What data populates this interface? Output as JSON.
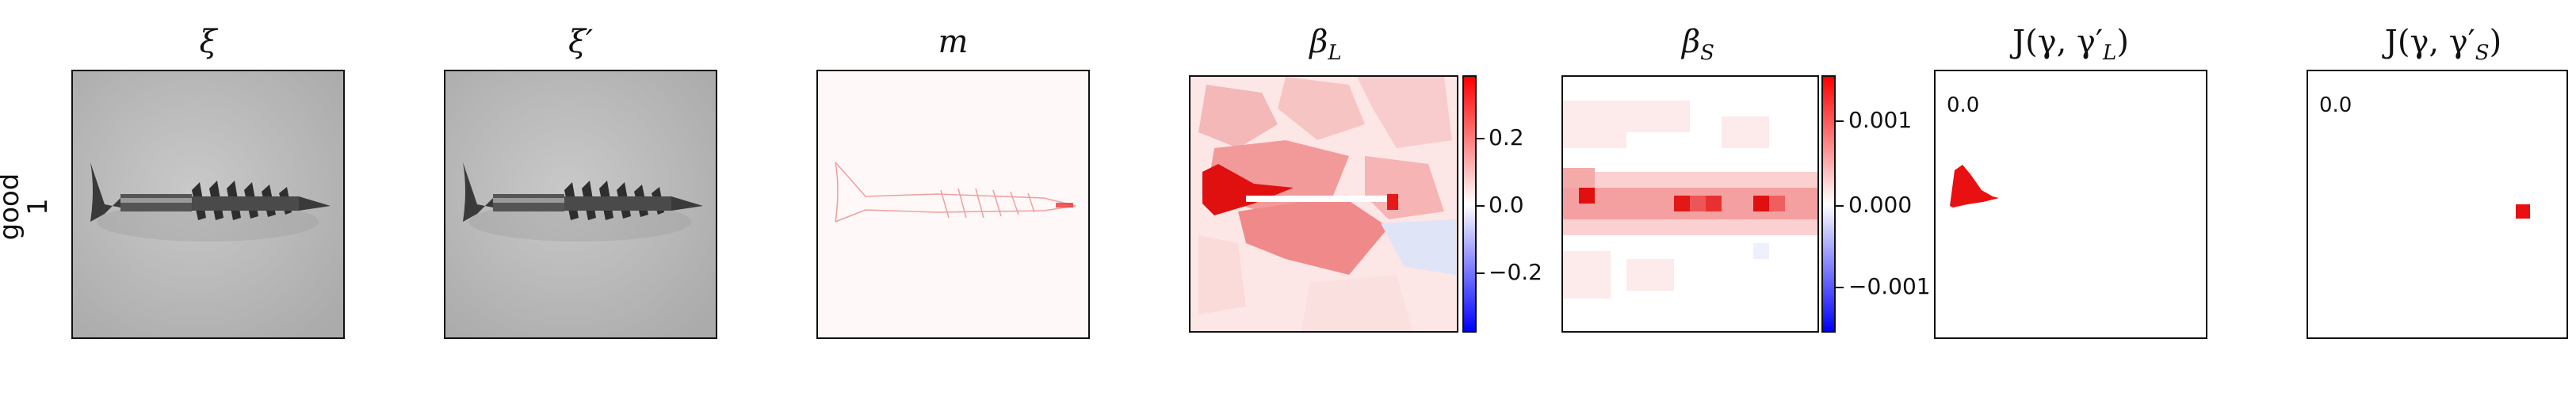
{
  "row_label": {
    "line1": "good",
    "line2": "1"
  },
  "panels": {
    "xi": {
      "title": "ξ"
    },
    "xi_prime": {
      "title": "ξ′"
    },
    "m": {
      "title": "m"
    },
    "beta_l": {
      "title": "β",
      "sub": "L"
    },
    "beta_s": {
      "title": "β",
      "sub": "S"
    },
    "j_l": {
      "title_pre": "J(γ, γ′",
      "sub": "L",
      "title_post": ")",
      "value": "0.0"
    },
    "j_s": {
      "title_pre": "J(γ, γ′",
      "sub": "S",
      "title_post": ")",
      "value": "0.0"
    }
  },
  "colorbar_l": {
    "ticks": [
      "0.2",
      "0.0",
      "−0.2"
    ]
  },
  "colorbar_s": {
    "ticks": [
      "0.001",
      "0.000",
      "−0.001"
    ]
  },
  "colors": {
    "positive": "#ff0000",
    "neutral": "#ffffff",
    "negative": "#0000ff",
    "frame": "#111111"
  }
}
